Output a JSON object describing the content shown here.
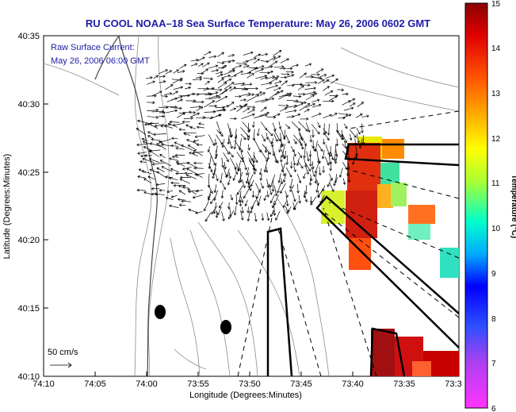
{
  "title": "RU COOL  NOAA–18  Sea Surface Temperature:  May 26, 2006 0602 GMT",
  "legend": {
    "line1": "Raw Surface Current:",
    "line2": "May 26, 2006 06:00 GMT"
  },
  "scale": {
    "label": "50 cm/s"
  },
  "axes": {
    "xlabel": "Longitude (Degrees:Minutes)",
    "ylabel": "Latitude (Degrees:Minutes)",
    "xticks": [
      "74:10",
      "74:05",
      "74:00",
      "73:55",
      "73:50",
      "73:45",
      "73:40",
      "73:35",
      "73:3"
    ],
    "yticks": [
      "40:35",
      "40:30",
      "40:25",
      "40:20",
      "40:15",
      "40:10"
    ]
  },
  "colorbar": {
    "label": "Temperature (°C)",
    "ticks": [
      "15",
      "14",
      "13",
      "12",
      "11",
      "10",
      "9",
      "8",
      "7",
      "6"
    ],
    "colors": [
      "#ff33ff",
      "#8a2be2",
      "#0000ff",
      "#00bfff",
      "#00ffb0",
      "#ffff00",
      "#ff8000",
      "#ff0000",
      "#8b0000"
    ]
  }
}
